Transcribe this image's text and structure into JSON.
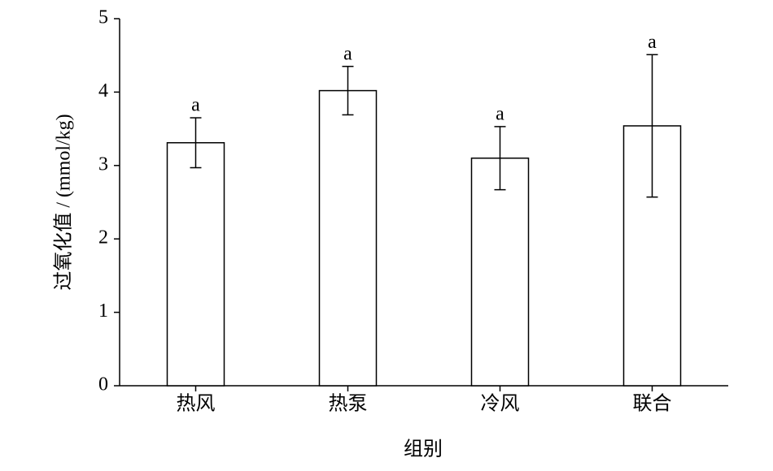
{
  "chart_data": {
    "type": "bar",
    "categories": [
      "热风",
      "热泵",
      "冷风",
      "联合"
    ],
    "values": [
      3.31,
      4.02,
      3.1,
      3.54
    ],
    "errors": [
      0.34,
      0.33,
      0.43,
      0.97
    ],
    "significance": [
      "a",
      "a",
      "a",
      "a"
    ],
    "color": "#ffffff",
    "ylim": [
      0,
      5
    ],
    "yticks": [
      0,
      1,
      2,
      3,
      4,
      5
    ],
    "x_label": "组别",
    "y_label": "过氧化值 / (mmol/kg)"
  }
}
